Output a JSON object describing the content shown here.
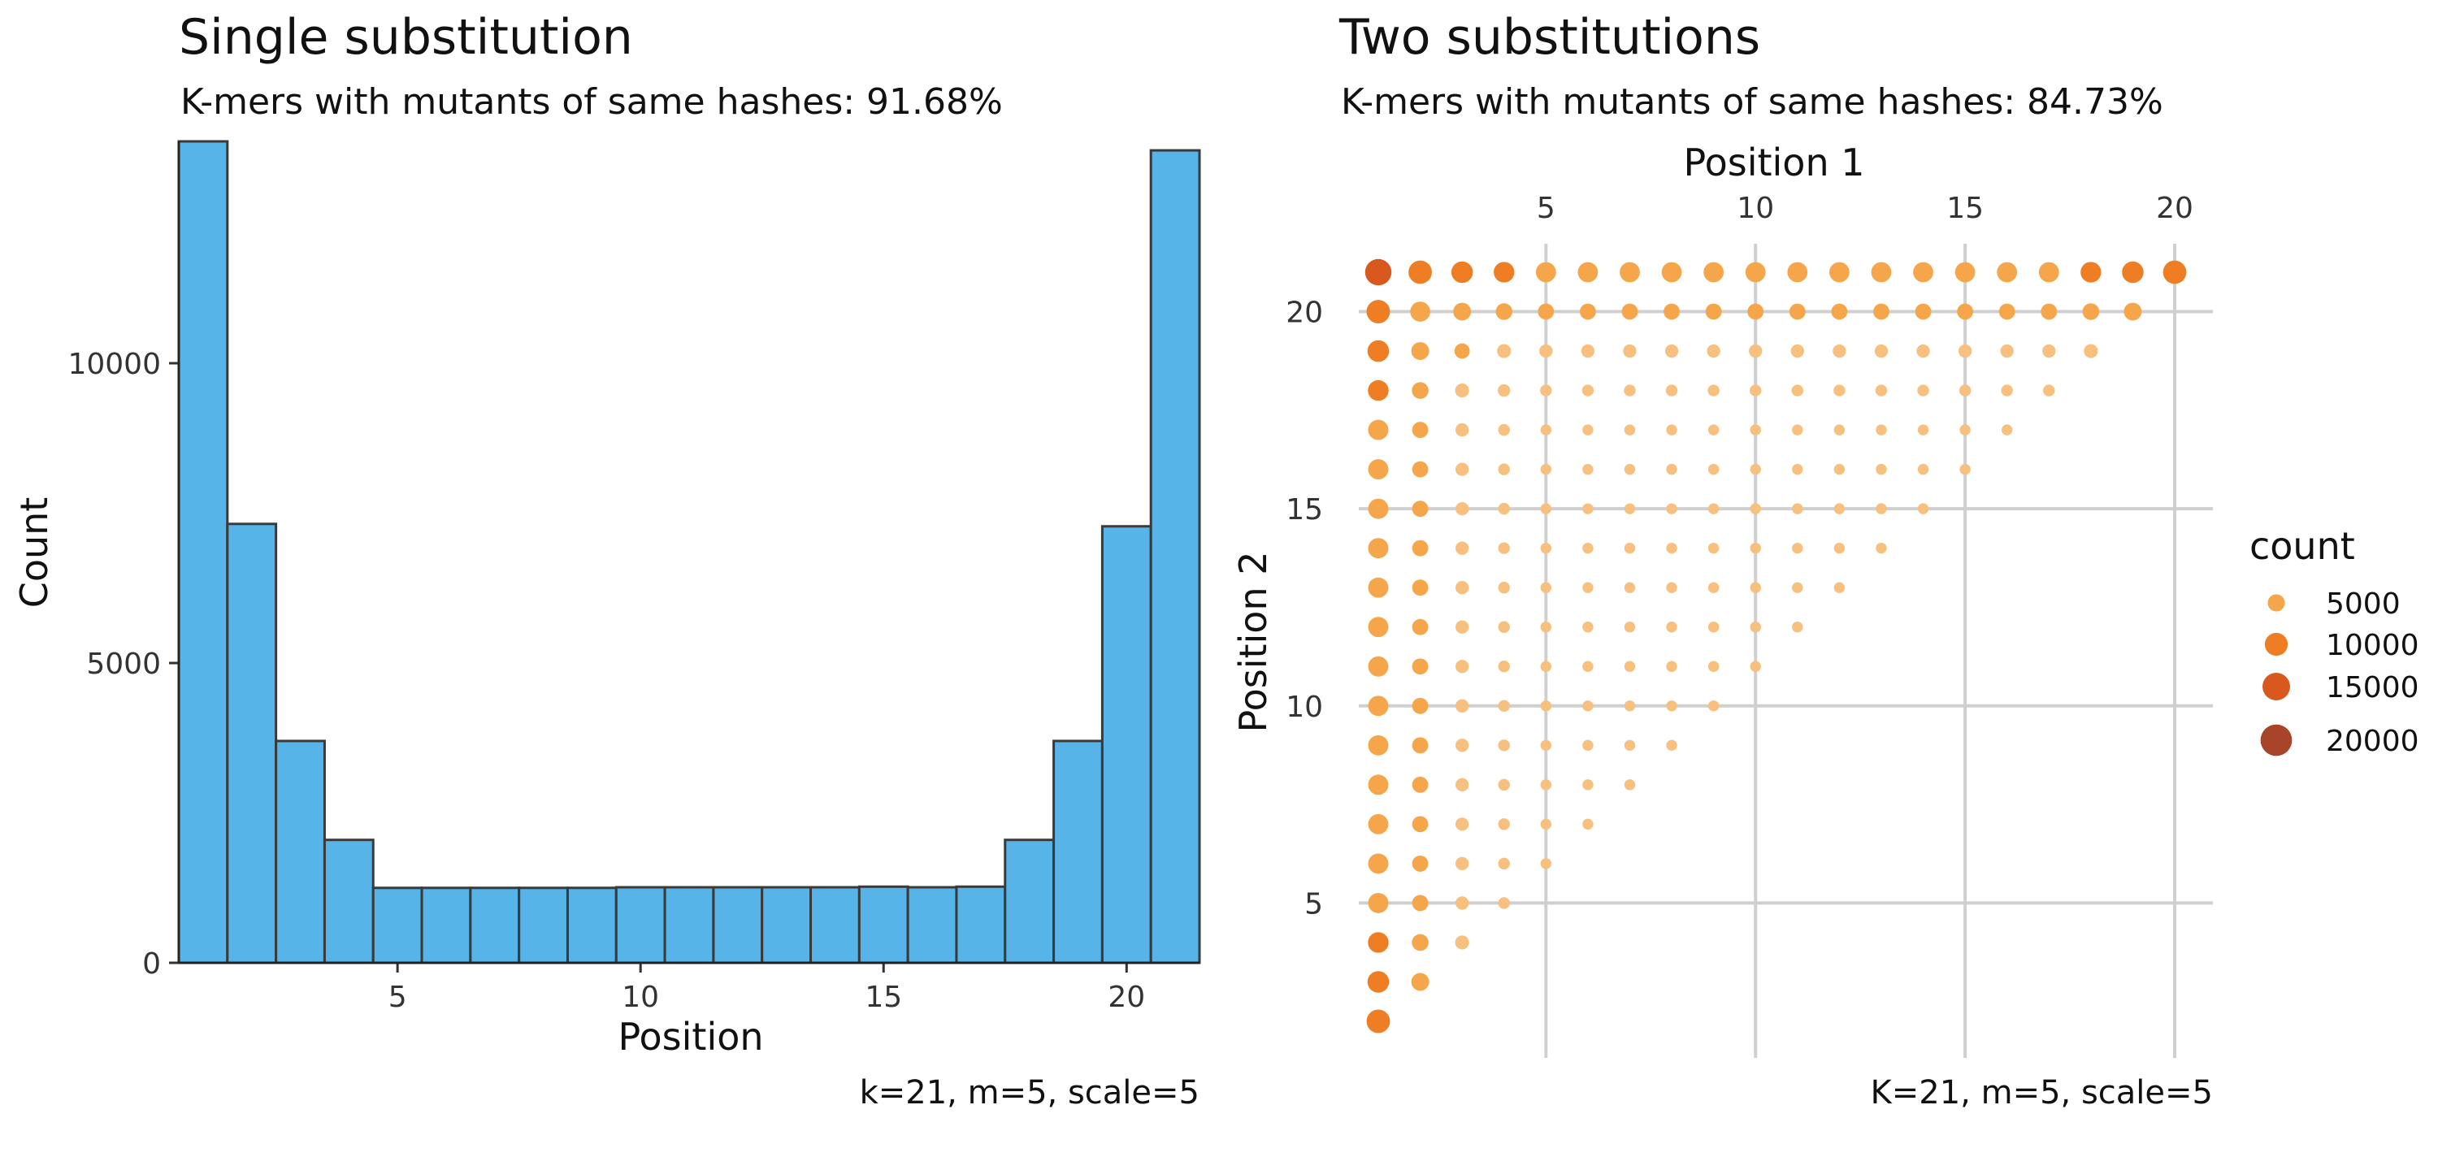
{
  "chart_data": [
    {
      "type": "bar",
      "title": "Single substitution",
      "subtitle": "K-mers with mutants of same hashes: 91.68%",
      "xlabel": "Position",
      "ylabel": "Count",
      "caption": "k=21, m=5, scale=5",
      "x": [
        1,
        2,
        3,
        4,
        5,
        6,
        7,
        8,
        9,
        10,
        11,
        12,
        13,
        14,
        15,
        16,
        17,
        18,
        19,
        20,
        21
      ],
      "values": [
        13700,
        7320,
        3700,
        2050,
        1250,
        1250,
        1250,
        1250,
        1250,
        1260,
        1260,
        1260,
        1260,
        1260,
        1270,
        1260,
        1270,
        2050,
        3700,
        7280,
        13550
      ],
      "xlim": [
        0.5,
        21.5
      ],
      "ylim": [
        0,
        13700
      ],
      "x_ticks": [
        5,
        10,
        15,
        20
      ],
      "y_ticks": [
        0,
        5000,
        10000
      ],
      "fill_color": "#56B4E9",
      "edge_color": "#3a3a3a",
      "grid": false
    },
    {
      "type": "scatter",
      "title": "Two substitutions",
      "subtitle": "K-mers with mutants of same hashes: 84.73%",
      "xlabel": "Position 1",
      "ylabel": "Position 2",
      "caption": "K=21, m=5, scale=5",
      "x_axis_position": "top",
      "x_ticks": [
        5,
        10,
        15,
        20
      ],
      "y_ticks": [
        5,
        10,
        15,
        20
      ],
      "xlim": [
        0.5,
        20.5
      ],
      "ylim": [
        1.5,
        21.5
      ],
      "grid": true,
      "size_legend": {
        "title": "count",
        "placement": "right",
        "entries": [
          {
            "label": "5000",
            "value": 5000,
            "color": "#F5A64A"
          },
          {
            "label": "10000",
            "value": 10000,
            "color": "#EE7D24"
          },
          {
            "label": "15000",
            "value": 15000,
            "color": "#D9581E"
          },
          {
            "label": "20000",
            "value": 20000,
            "color": "#A8442A"
          }
        ]
      },
      "count_rule": "count(p1,p2) = 0.5 * (hist[p1] + hist[p2]) for 1 <= p1 < p2 <= 21, using the single-substitution histogram values"
    }
  ]
}
